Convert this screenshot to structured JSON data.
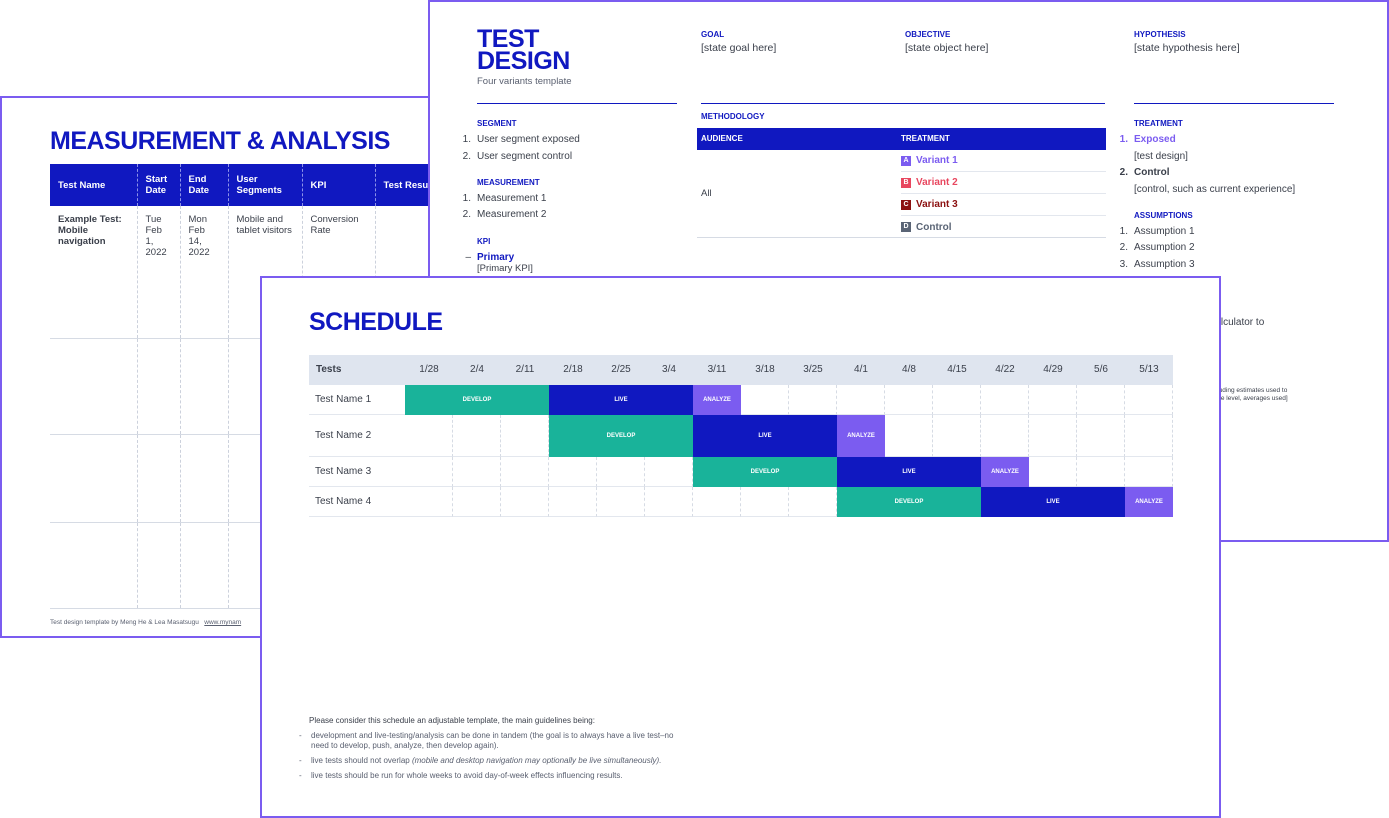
{
  "measurement": {
    "title": "MEASUREMENT & ANALYSIS",
    "columns": [
      "Test Name",
      "Start Date",
      "End Date",
      "User Segments",
      "KPI",
      "Test Resu"
    ],
    "rows": [
      [
        "Example Test: Mobile navigation",
        "Tue Feb 1, 2022",
        "Mon Feb 14, 2022",
        "Mobile and tablet visitors",
        "Conversion Rate",
        ""
      ]
    ],
    "footer": "Test design template by Meng He & Lea Masatsugu",
    "footer_link": "www.mynam"
  },
  "design": {
    "title": "TEST DESIGN",
    "subtitle": "Four variants template",
    "goal": {
      "label": "GOAL",
      "text": "[state goal here]"
    },
    "objective": {
      "label": "OBJECTIVE",
      "text": "[state object here]"
    },
    "hypothesis": {
      "label": "HYPOTHESIS",
      "text": "[state hypothesis here]"
    },
    "segment": {
      "label": "SEGMENT",
      "items": [
        "User segment exposed",
        "User segment control"
      ]
    },
    "measurement": {
      "label": "MEASUREMENT",
      "items": [
        "Measurement 1",
        "Measurement 2"
      ]
    },
    "kpi": {
      "label": "KPI",
      "primary": "Primary",
      "primary_text": "[Primary KPI]"
    },
    "methodology": {
      "label": "METHODOLOGY",
      "audience_header": "AUDIENCE",
      "treatment_header": "TREATMENT",
      "audience": "All",
      "variants": [
        {
          "badge": "A",
          "name": "Variant 1"
        },
        {
          "badge": "B",
          "name": "Variant 2"
        },
        {
          "badge": "C",
          "name": "Variant 3"
        },
        {
          "badge": "D",
          "name": "Control"
        }
      ]
    },
    "treatment": {
      "label": "TREATMENT",
      "items": [
        {
          "name": "Exposed",
          "text": "[test design]"
        },
        {
          "name": "Control",
          "text": "[control, such as current experience]"
        }
      ]
    },
    "assumptions": {
      "label": "ASSUMPTIONS",
      "items": [
        "Assumption 1",
        "Assumption 2",
        "Assumption 3"
      ]
    },
    "fragments": [
      "ze calculator to",
      "cluding estimates used to",
      "nce level, averages used]"
    ]
  },
  "schedule": {
    "title": "SCHEDULE",
    "header": "Tests",
    "weeks": [
      "1/28",
      "2/4",
      "2/11",
      "2/18",
      "2/25",
      "3/4",
      "3/11",
      "3/18",
      "3/25",
      "4/1",
      "4/8",
      "4/15",
      "4/22",
      "4/29",
      "5/6",
      "5/13"
    ],
    "tests": [
      {
        "name": "Test Name 1",
        "phases": [
          {
            "label": "DEVELOP",
            "from": "1/28",
            "to": "2/11"
          },
          {
            "label": "LIVE",
            "from": "2/18",
            "to": "3/4"
          },
          {
            "label": "ANALYZE",
            "from": "3/11",
            "to": "3/11"
          }
        ]
      },
      {
        "name": "Test Name 2",
        "phases": [
          {
            "label": "DEVELOP",
            "from": "2/18",
            "to": "3/4"
          },
          {
            "label": "LIVE",
            "from": "3/11",
            "to": "3/25"
          },
          {
            "label": "ANALYZE",
            "from": "4/1",
            "to": "4/1"
          }
        ]
      },
      {
        "name": "Test Name 3",
        "phases": [
          {
            "label": "DEVELOP",
            "from": "3/11",
            "to": "3/25"
          },
          {
            "label": "LIVE",
            "from": "4/1",
            "to": "4/15"
          },
          {
            "label": "ANALYZE",
            "from": "4/22",
            "to": "4/22"
          }
        ]
      },
      {
        "name": "Test Name 4",
        "phases": [
          {
            "label": "DEVELOP",
            "from": "4/1",
            "to": "4/15"
          },
          {
            "label": "LIVE",
            "from": "4/22",
            "to": "5/6"
          },
          {
            "label": "ANALYZE",
            "from": "5/13",
            "to": "5/13"
          }
        ]
      }
    ],
    "note": "Please consider this schedule an adjustable template, the main guidelines being:",
    "bullets": [
      {
        "text": "development and live-testing/analysis can be done in tandem (the goal is to always have a live test–no need to develop, push, analyze, then develop again)."
      },
      {
        "text": "live tests should not overlap ",
        "italic": "(mobile and desktop navigation may optionally be live simultaneously)."
      },
      {
        "text": "live tests should be run for whole weeks to avoid day-of-week effects influencing results."
      }
    ]
  }
}
